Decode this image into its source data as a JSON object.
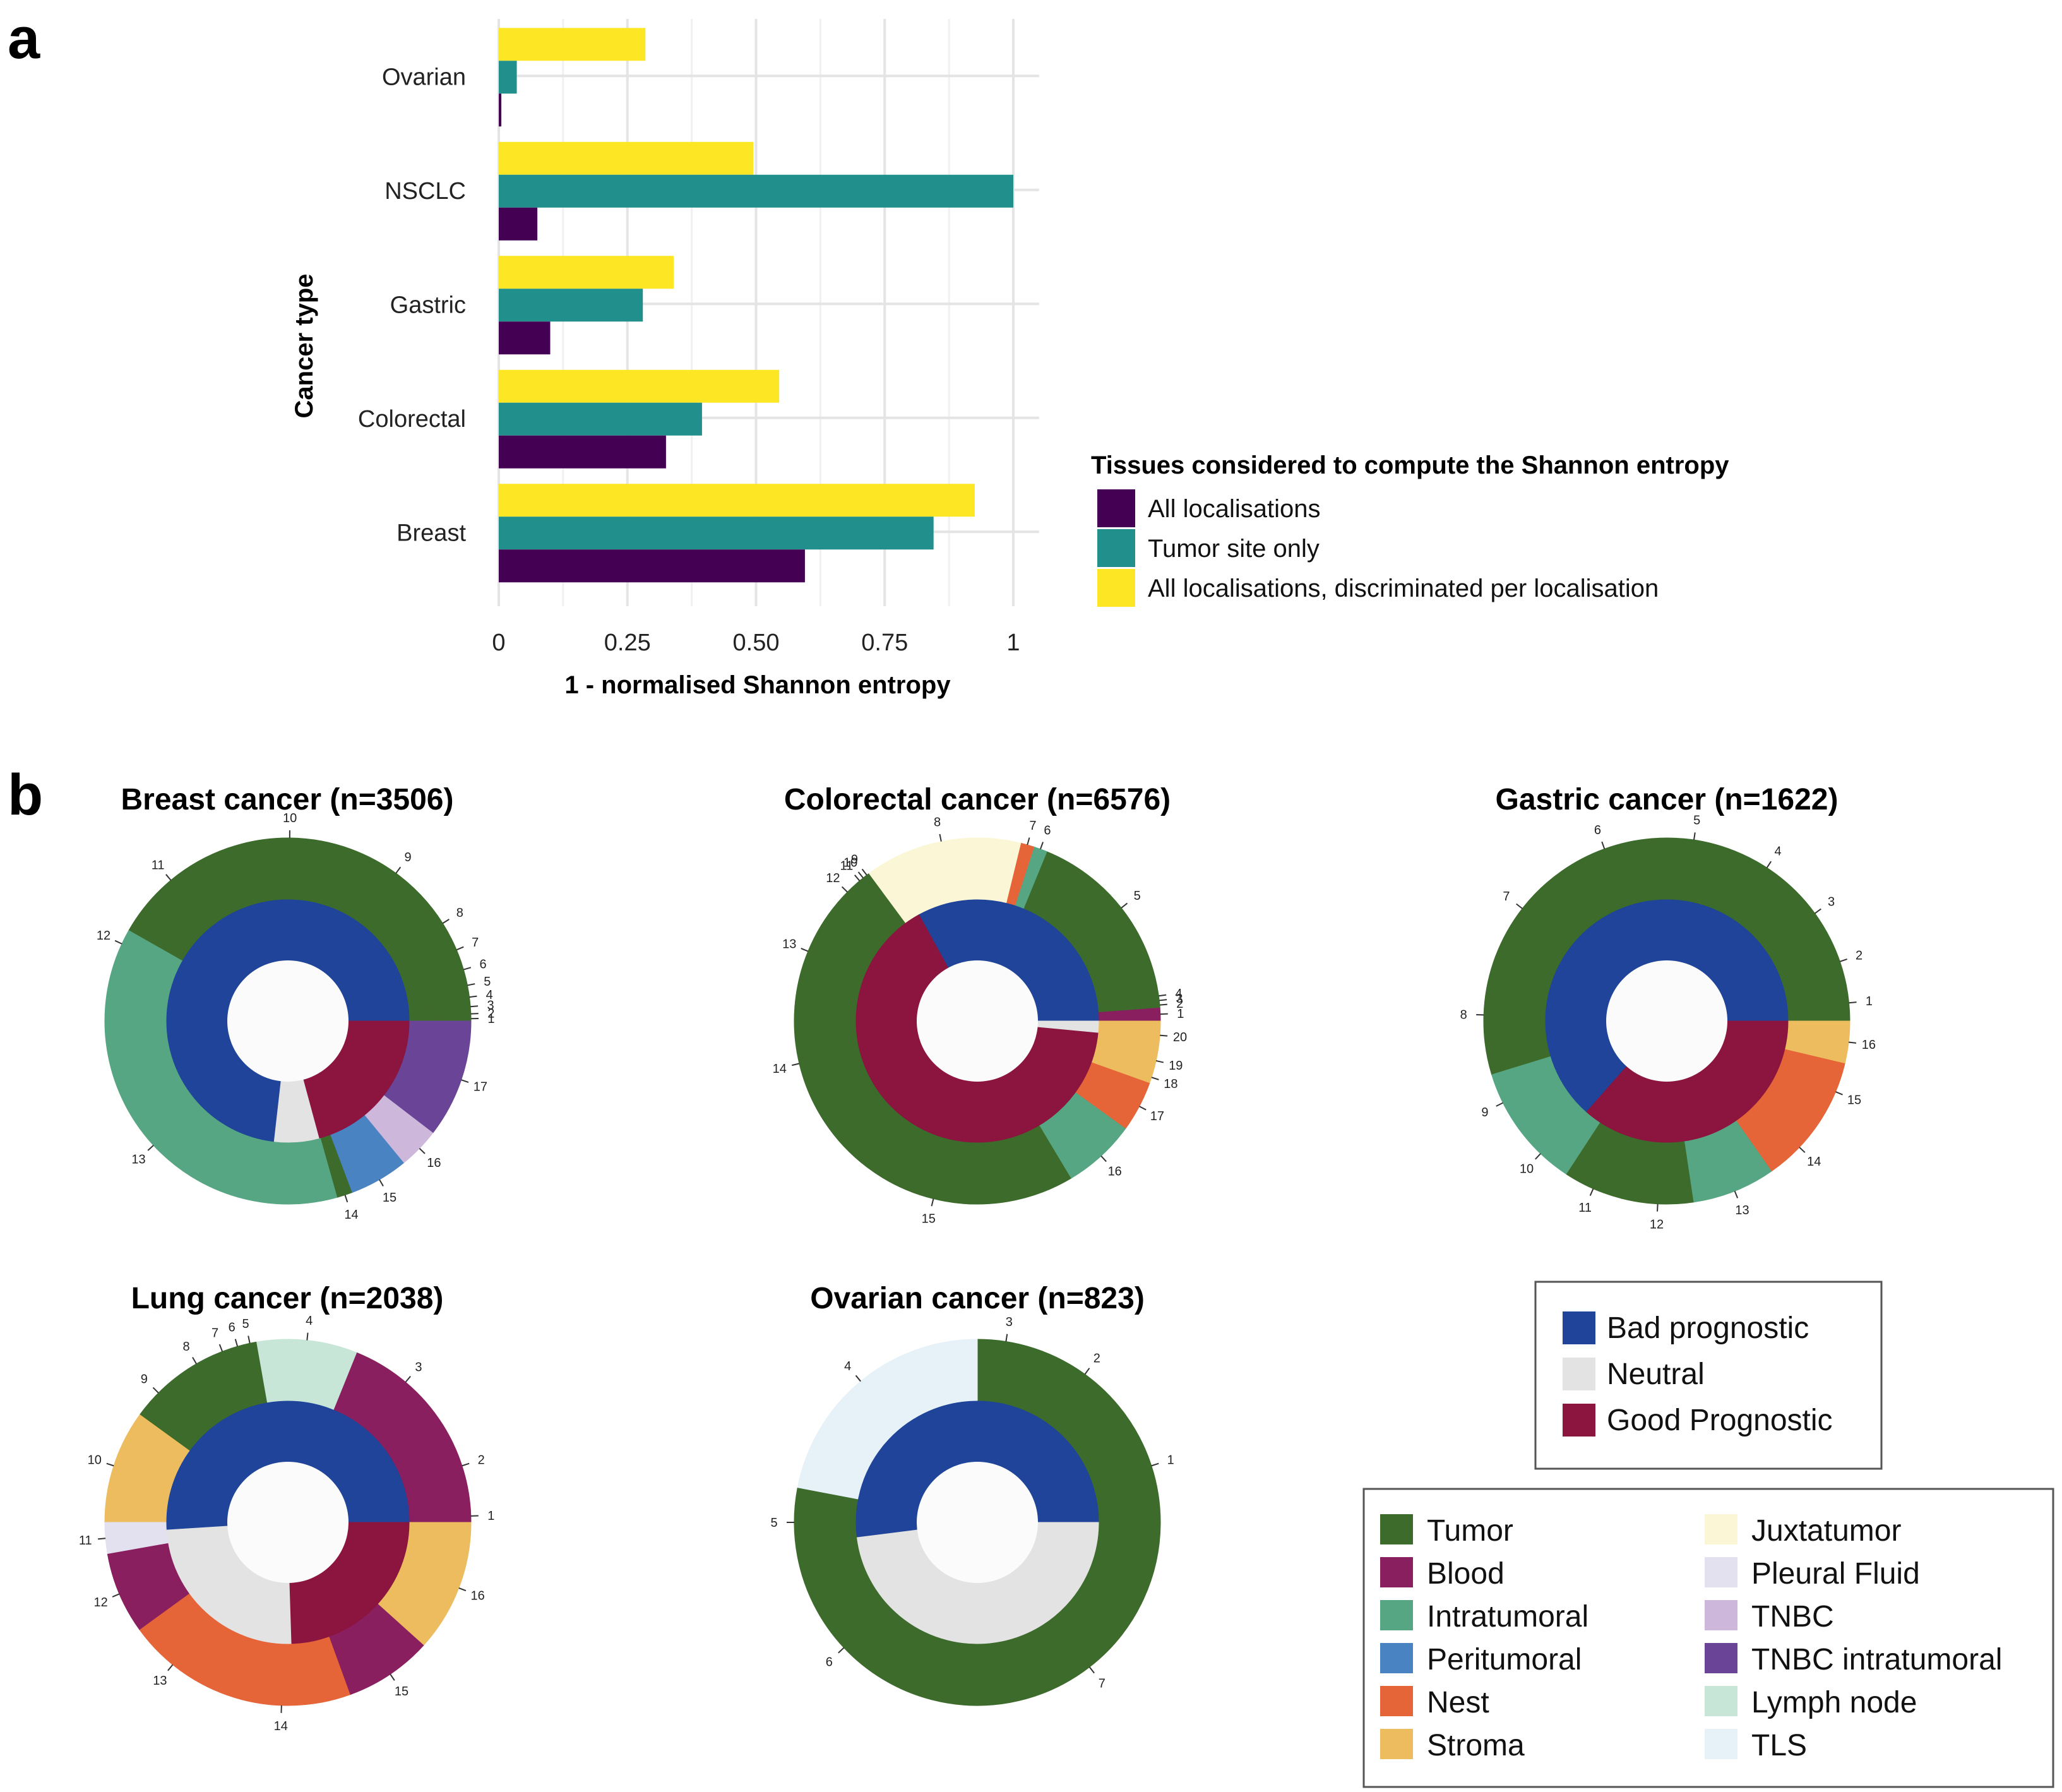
{
  "panel_labels": {
    "a": "a",
    "b": "b"
  },
  "colors": {
    "all_localisations": "#440154",
    "tumor_site_only": "#21908c",
    "discriminated": "#fde725",
    "Bad prognostic": "#1f4499",
    "Neutral": "#e3e3e3",
    "Good Prognostic": "#8b153f",
    "Tumor": "#3d6b2c",
    "Blood": "#8a1f5f",
    "Intratumoral": "#56a683",
    "Peritumoral": "#4a83c2",
    "Nest": "#e56438",
    "Stroma": "#ecbc5f",
    "Juxtatumor": "#fbf7d6",
    "Pleural Fluid": "#e3e1f0",
    "TNBC": "#cdb7db",
    "TNBC intratumoral": "#6a4497",
    "Lymph node": "#c8e6d8",
    "TLS": "#e6f2f8"
  },
  "chart_data": [
    {
      "type": "bar",
      "orientation": "horizontal",
      "categories": [
        "Ovarian",
        "NSCLC",
        "Gastric",
        "Colorectal",
        "Breast"
      ],
      "series": [
        {
          "name": "All localisations, discriminated per localisation",
          "values": [
            0.285,
            0.495,
            0.34,
            0.545,
            0.925
          ]
        },
        {
          "name": "Tumor site only",
          "values": [
            0.035,
            1.0,
            0.28,
            0.395,
            0.845
          ]
        },
        {
          "name": "All localisations",
          "values": [
            0.005,
            0.075,
            0.1,
            0.325,
            0.595
          ]
        }
      ],
      "xlabel": "1 - normalised Shannon entropy",
      "ylabel": "Cancer type",
      "xlim": [
        0,
        1.05
      ],
      "xticks": [
        "0",
        "0.25",
        "0.50",
        "0.75",
        "1"
      ],
      "grid": true,
      "legend_title": "Tissues considered to compute the Shannon entropy",
      "legend_entries": [
        "All localisations",
        "Tumor site only",
        "All localisations, discriminated per localisation"
      ],
      "legend_position": "right"
    },
    {
      "type": "donut",
      "title": "Breast cancer (n=3506)",
      "inner": [
        {
          "category": "Bad prognostic",
          "value": 0.732
        },
        {
          "category": "Neutral",
          "value": 0.06
        },
        {
          "category": "Good Prognostic",
          "value": 0.208
        }
      ],
      "outer": [
        {
          "label": "1",
          "tissue": "Tumor",
          "value": 0.004
        },
        {
          "label": "2",
          "tissue": "Tumor",
          "value": 0.004
        },
        {
          "label": "3",
          "tissue": "Tumor",
          "value": 0.008
        },
        {
          "label": "4",
          "tissue": "Tumor",
          "value": 0.008
        },
        {
          "label": "5",
          "tissue": "Tumor",
          "value": 0.012
        },
        {
          "label": "6",
          "tissue": "Tumor",
          "value": 0.015
        },
        {
          "label": "7",
          "tissue": "Tumor",
          "value": 0.02
        },
        {
          "label": "8",
          "tissue": "Tumor",
          "value": 0.03
        },
        {
          "label": "9",
          "tissue": "Tumor",
          "value": 0.085
        },
        {
          "label": "10",
          "tissue": "Tumor",
          "value": 0.105
        },
        {
          "label": "11",
          "tissue": "Tumor",
          "value": 0.11
        },
        {
          "label": "12",
          "tissue": "Intratumoral",
          "value": 0.025
        },
        {
          "label": "13",
          "tissue": "Intratumoral",
          "value": 0.336
        },
        {
          "label": "14",
          "tissue": "Tumor",
          "value": 0.013
        },
        {
          "label": "15",
          "tissue": "Peritumoral",
          "value": 0.05
        },
        {
          "label": "16",
          "tissue": "TNBC",
          "value": 0.035
        },
        {
          "label": "17",
          "tissue": "TNBC intratumoral",
          "value": 0.1
        }
      ]
    },
    {
      "type": "donut",
      "title": "Colorectal cancer (n=6576)",
      "inner": [
        {
          "category": "Bad prognostic",
          "value": 0.33
        },
        {
          "category": "Good Prognostic",
          "value": 0.655
        },
        {
          "category": "Neutral",
          "value": 0.015
        }
      ],
      "outer": [
        {
          "label": "1",
          "tissue": "Blood",
          "value": 0.012
        },
        {
          "label": "2",
          "tissue": "Tumor",
          "value": 0.004
        },
        {
          "label": "3",
          "tissue": "Tumor",
          "value": 0.004
        },
        {
          "label": "4",
          "tissue": "Tumor",
          "value": 0.004
        },
        {
          "label": "5",
          "tissue": "Tumor",
          "value": 0.165
        },
        {
          "label": "6",
          "tissue": "Intratumoral",
          "value": 0.012
        },
        {
          "label": "7",
          "tissue": "Nest",
          "value": 0.012
        },
        {
          "label": "8",
          "tissue": "Juxtatumor",
          "value": 0.14
        },
        {
          "label": "9",
          "tissue": "Tumor",
          "value": 0.004
        },
        {
          "label": "10",
          "tissue": "Tumor",
          "value": 0.004
        },
        {
          "label": "11",
          "tissue": "Tumor",
          "value": 0.004
        },
        {
          "label": "12",
          "tissue": "Tumor",
          "value": 0.025
        },
        {
          "label": "13",
          "tissue": "Tumor",
          "value": 0.1
        },
        {
          "label": "14",
          "tissue": "Tumor",
          "value": 0.1
        },
        {
          "label": "15",
          "tissue": "Tumor",
          "value": 0.25
        },
        {
          "label": "16",
          "tissue": "Intratumoral",
          "value": 0.065
        },
        {
          "label": "17",
          "tissue": "Nest",
          "value": 0.045
        },
        {
          "label": "18",
          "tissue": "Stroma",
          "value": 0.01
        },
        {
          "label": "19",
          "tissue": "Stroma",
          "value": 0.02
        },
        {
          "label": "20",
          "tissue": "Stroma",
          "value": 0.025
        }
      ]
    },
    {
      "type": "donut",
      "title": "Gastric cancer (n=1622)",
      "inner": [
        {
          "category": "Bad prognostic",
          "value": 0.635
        },
        {
          "category": "Good Prognostic",
          "value": 0.365
        }
      ],
      "outer": [
        {
          "label": "1",
          "tissue": "Tumor",
          "value": 0.03
        },
        {
          "label": "2",
          "tissue": "Tumor",
          "value": 0.04
        },
        {
          "label": "3",
          "tissue": "Tumor",
          "value": 0.05
        },
        {
          "label": "4",
          "tissue": "Tumor",
          "value": 0.06
        },
        {
          "label": "5",
          "tissue": "Tumor",
          "value": 0.07
        },
        {
          "label": "6",
          "tissue": "Tumor",
          "value": 0.08
        },
        {
          "label": "7",
          "tissue": "Tumor",
          "value": 0.09
        },
        {
          "label": "8",
          "tissue": "Tumor",
          "value": 0.1
        },
        {
          "label": "9",
          "tissue": "Intratumoral",
          "value": 0.05
        },
        {
          "label": "10",
          "tissue": "Intratumoral",
          "value": 0.055
        },
        {
          "label": "11",
          "tissue": "Tumor",
          "value": 0.05
        },
        {
          "label": "12",
          "tissue": "Tumor",
          "value": 0.06
        },
        {
          "label": "13",
          "tissue": "Intratumoral",
          "value": 0.07
        },
        {
          "label": "14",
          "tissue": "Nest",
          "value": 0.06
        },
        {
          "label": "15",
          "tissue": "Nest",
          "value": 0.05
        },
        {
          "label": "16",
          "tissue": "Stroma",
          "value": 0.035
        }
      ]
    },
    {
      "type": "donut",
      "title": "Lung cancer (n=2038)",
      "inner": [
        {
          "category": "Bad prognostic",
          "value": 0.51
        },
        {
          "category": "Neutral",
          "value": 0.245
        },
        {
          "category": "Good Prognostic",
          "value": 0.245
        }
      ],
      "outer": [
        {
          "label": "1",
          "tissue": "Blood",
          "value": 0.01
        },
        {
          "label": "2",
          "tissue": "Blood",
          "value": 0.07
        },
        {
          "label": "3",
          "tissue": "Blood",
          "value": 0.09
        },
        {
          "label": "4",
          "tissue": "Lymph node",
          "value": 0.08
        },
        {
          "label": "5",
          "tissue": "Tumor",
          "value": 0.01
        },
        {
          "label": "6",
          "tissue": "Tumor",
          "value": 0.01
        },
        {
          "label": "7",
          "tissue": "Tumor",
          "value": 0.015
        },
        {
          "label": "8",
          "tissue": "Tumor",
          "value": 0.03
        },
        {
          "label": "9",
          "tissue": "Tumor",
          "value": 0.045
        },
        {
          "label": "10",
          "tissue": "Stroma",
          "value": 0.09
        },
        {
          "label": "11",
          "tissue": "Pleural Fluid",
          "value": 0.025
        },
        {
          "label": "12",
          "tissue": "Blood",
          "value": 0.065
        },
        {
          "label": "13",
          "tissue": "Nest",
          "value": 0.075
        },
        {
          "label": "14",
          "tissue": "Nest",
          "value": 0.11
        },
        {
          "label": "15",
          "tissue": "Blood",
          "value": 0.07
        },
        {
          "label": "16",
          "tissue": "Stroma",
          "value": 0.105
        }
      ]
    },
    {
      "type": "donut",
      "title": "Ovarian cancer (n=823)",
      "inner": [
        {
          "category": "Bad prognostic",
          "value": 0.52
        },
        {
          "category": "Neutral",
          "value": 0.48
        }
      ],
      "outer": [
        {
          "label": "1",
          "tissue": "Tumor",
          "value": 0.1
        },
        {
          "label": "2",
          "tissue": "Tumor",
          "value": 0.1
        },
        {
          "label": "3",
          "tissue": "Tumor",
          "value": 0.05
        },
        {
          "label": "4",
          "tissue": "TLS",
          "value": 0.22
        },
        {
          "label": "5",
          "tissue": "Tumor",
          "value": 0.06
        },
        {
          "label": "6",
          "tissue": "Tumor",
          "value": 0.18
        },
        {
          "label": "7",
          "tissue": "Tumor",
          "value": 0.29
        }
      ]
    }
  ],
  "legend_prognosis": [
    "Bad prognostic",
    "Neutral",
    "Good Prognostic"
  ],
  "legend_tissues": {
    "left": [
      "Tumor",
      "Blood",
      "Intratumoral",
      "Peritumoral",
      "Nest",
      "Stroma"
    ],
    "right": [
      "Juxtatumor",
      "Pleural Fluid",
      "TNBC",
      "TNBC intratumoral",
      "Lymph node",
      "TLS"
    ]
  }
}
